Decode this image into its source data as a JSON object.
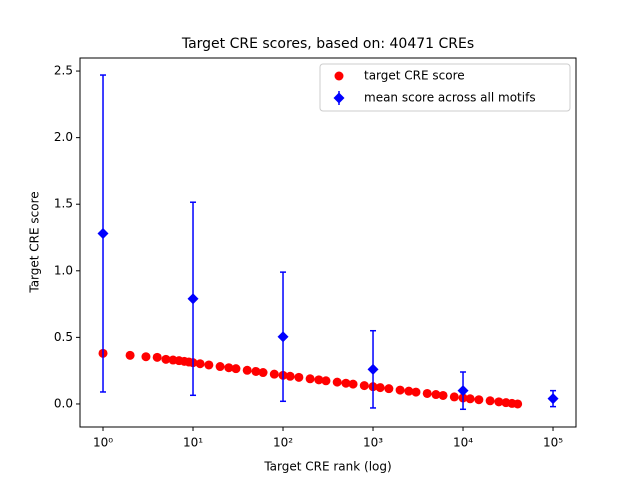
{
  "chart_data": {
    "type": "scatter",
    "title": "Target CRE scores, based on: 40471 CREs",
    "x_label": "Target CRE rank (log)",
    "y_label": "Target CRE score",
    "xscale": "log",
    "xlim": [
      0.555,
      180000
    ],
    "ylim": [
      -0.173,
      2.598
    ],
    "xticks": [
      {
        "value": 1,
        "label": "10⁰"
      },
      {
        "value": 10,
        "label": "10¹"
      },
      {
        "value": 100,
        "label": "10²"
      },
      {
        "value": 1000,
        "label": "10³"
      },
      {
        "value": 10000,
        "label": "10⁴"
      },
      {
        "value": 100000,
        "label": "10⁵"
      }
    ],
    "yticks": [
      {
        "value": 0,
        "label": "0.0"
      },
      0.5,
      {
        "value": 1,
        "label": "1.0"
      },
      1.5,
      {
        "value": 2,
        "label": "2.0"
      },
      2.5
    ],
    "legend": "upper right",
    "series": [
      {
        "name": "target CRE score",
        "kind": "scatter",
        "color": "#ff0000",
        "x": [
          1,
          2,
          3,
          4,
          5,
          6,
          7,
          8,
          9,
          10,
          12,
          15,
          20,
          25,
          30,
          40,
          50,
          60,
          80,
          100,
          120,
          150,
          200,
          250,
          300,
          400,
          500,
          600,
          800,
          1000,
          1200,
          1500,
          2000,
          2500,
          3000,
          4000,
          5000,
          6000,
          8000,
          10000,
          12000,
          15000,
          20000,
          25000,
          30000,
          35000,
          40471
        ],
        "values": [
          0.38,
          0.365,
          0.355,
          0.35,
          0.335,
          0.33,
          0.325,
          0.32,
          0.315,
          0.31,
          0.302,
          0.293,
          0.281,
          0.272,
          0.265,
          0.253,
          0.244,
          0.236,
          0.224,
          0.215,
          0.208,
          0.2,
          0.189,
          0.181,
          0.174,
          0.164,
          0.156,
          0.149,
          0.138,
          0.13,
          0.123,
          0.115,
          0.104,
          0.096,
          0.089,
          0.079,
          0.071,
          0.064,
          0.053,
          0.045,
          0.039,
          0.032,
          0.024,
          0.016,
          0.01,
          0.004,
          0.0
        ]
      },
      {
        "name": "mean score across all motifs",
        "kind": "errorbar",
        "color": "#0000ff",
        "x": [
          1,
          10,
          100,
          1000,
          10000,
          100000
        ],
        "values": [
          1.28,
          0.79,
          0.505,
          0.26,
          0.1,
          0.04
        ],
        "errors": [
          1.19,
          0.725,
          0.485,
          0.29,
          0.14,
          0.06
        ]
      }
    ]
  }
}
